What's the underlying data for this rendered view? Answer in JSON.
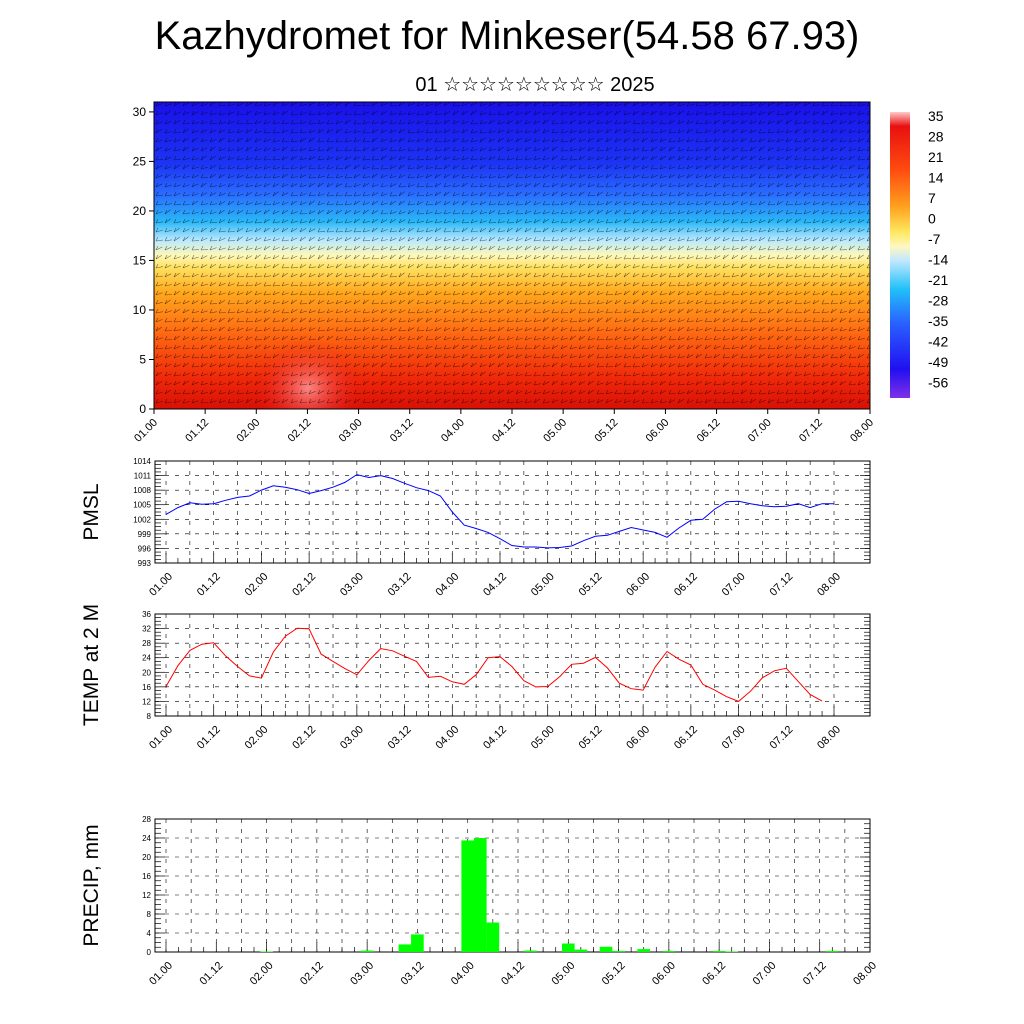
{
  "title": "Kazhydromet for Minkeser(54.58 67.93)",
  "subtitle": "01 ☆☆☆☆☆☆☆☆☆ 2025",
  "chart_data": [
    {
      "type": "heatmap",
      "description_fields": "vertical cross-section of temperature with wind barbs",
      "x_ticks": [
        "01.00",
        "01.12",
        "02.00",
        "02.12",
        "03.00",
        "03.12",
        "04.00",
        "04.12",
        "05.00",
        "05.12",
        "06.00",
        "06.12",
        "07.00",
        "07.12",
        "08.00"
      ],
      "y_ticks": [
        "0",
        "5",
        "10",
        "15",
        "20",
        "25",
        "30"
      ],
      "ylim": [
        0,
        31
      ],
      "colorbar_labels": [
        "35",
        "28",
        "21",
        "14",
        "7",
        "0",
        "-7",
        "-14",
        "-21",
        "-28",
        "-35",
        "-42",
        "-49",
        "-56"
      ],
      "colorbar_range": [
        -60,
        36
      ],
      "colors": [
        "#1a00e0",
        "#2d5bff",
        "#1ec8ff",
        "#bfe8ff",
        "#fff9b0",
        "#ffd23a",
        "#ff9a1a",
        "#ff5a10",
        "#e81208",
        "#ff8a8a"
      ]
    },
    {
      "type": "line",
      "ylabel": "PMSL",
      "x_ticks": [
        "01.00",
        "01.12",
        "02.00",
        "02.12",
        "03.00",
        "03.12",
        "04.00",
        "04.12",
        "05.00",
        "05.12",
        "06.00",
        "06.12",
        "07.00",
        "07.12",
        "08.00"
      ],
      "y_ticks": [
        "993",
        "996",
        "999",
        "1002",
        "1005",
        "1008",
        "1011",
        "1014"
      ],
      "ylim": [
        993,
        1014
      ],
      "color": "#0000ff",
      "x": [
        0,
        3,
        6,
        9,
        12,
        15,
        18,
        21,
        24,
        27,
        30,
        33,
        36,
        39,
        42,
        45,
        48,
        51,
        54,
        57,
        60,
        63,
        66,
        69,
        72,
        75,
        78,
        81,
        84,
        87,
        90,
        93,
        96,
        99,
        102,
        105,
        108,
        111,
        114,
        117,
        120,
        123,
        126,
        129,
        132,
        135,
        138,
        141,
        144,
        147,
        150,
        153,
        156,
        159,
        162,
        165,
        168
      ],
      "values": [
        1003.0,
        1004.4,
        1005.4,
        1005.1,
        1005.2,
        1005.9,
        1006.5,
        1006.8,
        1008.0,
        1008.9,
        1008.6,
        1008.1,
        1007.3,
        1007.9,
        1008.6,
        1009.6,
        1011.2,
        1010.6,
        1011.0,
        1010.4,
        1009.4,
        1008.5,
        1007.9,
        1006.8,
        1003.5,
        1000.8,
        1000.1,
        999.3,
        998.0,
        996.6,
        996.3,
        996.3,
        996.1,
        996.2,
        996.5,
        997.6,
        998.5,
        998.7,
        999.5,
        1000.3,
        999.8,
        999.3,
        998.3,
        1000.2,
        1001.8,
        1002.0,
        1004.1,
        1005.6,
        1005.7,
        1005.2,
        1004.8,
        1004.6,
        1004.7,
        1005.2,
        1004.4,
        1005.2,
        1005.2
      ]
    },
    {
      "type": "line",
      "ylabel": "TEMP at 2 M",
      "x_ticks": [
        "01.00",
        "01.12",
        "02.00",
        "02.12",
        "03.00",
        "03.12",
        "04.00",
        "04.12",
        "05.00",
        "05.12",
        "06.00",
        "06.12",
        "07.00",
        "07.12",
        "08.00"
      ],
      "y_ticks": [
        "8",
        "12",
        "16",
        "20",
        "24",
        "28",
        "32",
        "36"
      ],
      "ylim": [
        8,
        36
      ],
      "color": "#ff0000",
      "x": [
        0,
        3,
        6,
        9,
        12,
        15,
        18,
        21,
        24,
        27,
        30,
        33,
        36,
        39,
        42,
        45,
        48,
        51,
        54,
        57,
        60,
        63,
        66,
        69,
        72,
        75,
        78,
        81,
        84,
        87,
        90,
        93,
        96,
        99,
        102,
        105,
        108,
        111,
        114,
        117,
        120,
        123,
        126,
        129,
        132,
        135,
        138,
        141,
        144,
        147,
        150,
        153,
        156,
        159,
        162,
        165
      ],
      "values": [
        16.1,
        21.8,
        26.0,
        27.7,
        28.1,
        24.5,
        21.6,
        19.0,
        18.4,
        25.6,
        29.9,
        32.1,
        31.9,
        25.0,
        23.0,
        21.0,
        19.3,
        23.2,
        26.5,
        25.9,
        24.4,
        23.0,
        18.6,
        18.9,
        17.4,
        16.7,
        19.3,
        24.0,
        24.3,
        21.6,
        17.7,
        16.0,
        16.1,
        18.8,
        22.2,
        22.5,
        24.1,
        21.2,
        17.0,
        15.5,
        15.1,
        21.4,
        25.7,
        23.6,
        22.0,
        16.7,
        15.1,
        13.3,
        12.0,
        14.8,
        18.5,
        20.4,
        21.1,
        17.5,
        13.9,
        12.1
      ]
    },
    {
      "type": "bar",
      "ylabel": "PRECIP, mm",
      "x_ticks": [
        "01.00",
        "01.12",
        "02.00",
        "02.12",
        "03.00",
        "03.12",
        "04.00",
        "04.12",
        "05.00",
        "05.12",
        "06.00",
        "06.12",
        "07.00",
        "07.12",
        "08.00"
      ],
      "y_ticks": [
        "0",
        "4",
        "8",
        "12",
        "16",
        "20",
        "24",
        "28"
      ],
      "ylim": [
        0,
        28
      ],
      "color": "#00ff00",
      "x": [
        24,
        48,
        57,
        60,
        72,
        75,
        78,
        87,
        96,
        99,
        105,
        108,
        114,
        120,
        132,
        135,
        159
      ],
      "values": [
        0.1,
        0.3,
        1.6,
        3.7,
        23.5,
        24.0,
        6.2,
        0.3,
        1.8,
        0.5,
        1.1,
        0.2,
        0.6,
        0.2,
        0.2,
        0.1,
        0.2
      ]
    }
  ]
}
